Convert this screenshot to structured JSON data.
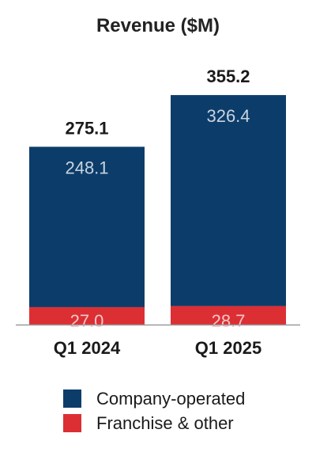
{
  "chart_data": {
    "type": "bar",
    "stacked": true,
    "title": "Revenue ($M)",
    "categories": [
      "Q1 2024",
      "Q1 2025"
    ],
    "series": [
      {
        "name": "Franchise & other",
        "values": [
          27.0,
          28.7
        ],
        "color": "#dc2f34",
        "value_labels": [
          "27.0",
          "28.7"
        ]
      },
      {
        "name": "Company-operated",
        "values": [
          248.1,
          326.4
        ],
        "color": "#0c3d6a",
        "value_labels": [
          "248.1",
          "326.4"
        ]
      }
    ],
    "totals": [
      275.1,
      355.2
    ],
    "total_labels": [
      "275.1",
      "355.2"
    ],
    "ylim": [
      0,
      355.2
    ],
    "grid": false,
    "legend": "bottom",
    "xlabel": "",
    "ylabel": ""
  }
}
